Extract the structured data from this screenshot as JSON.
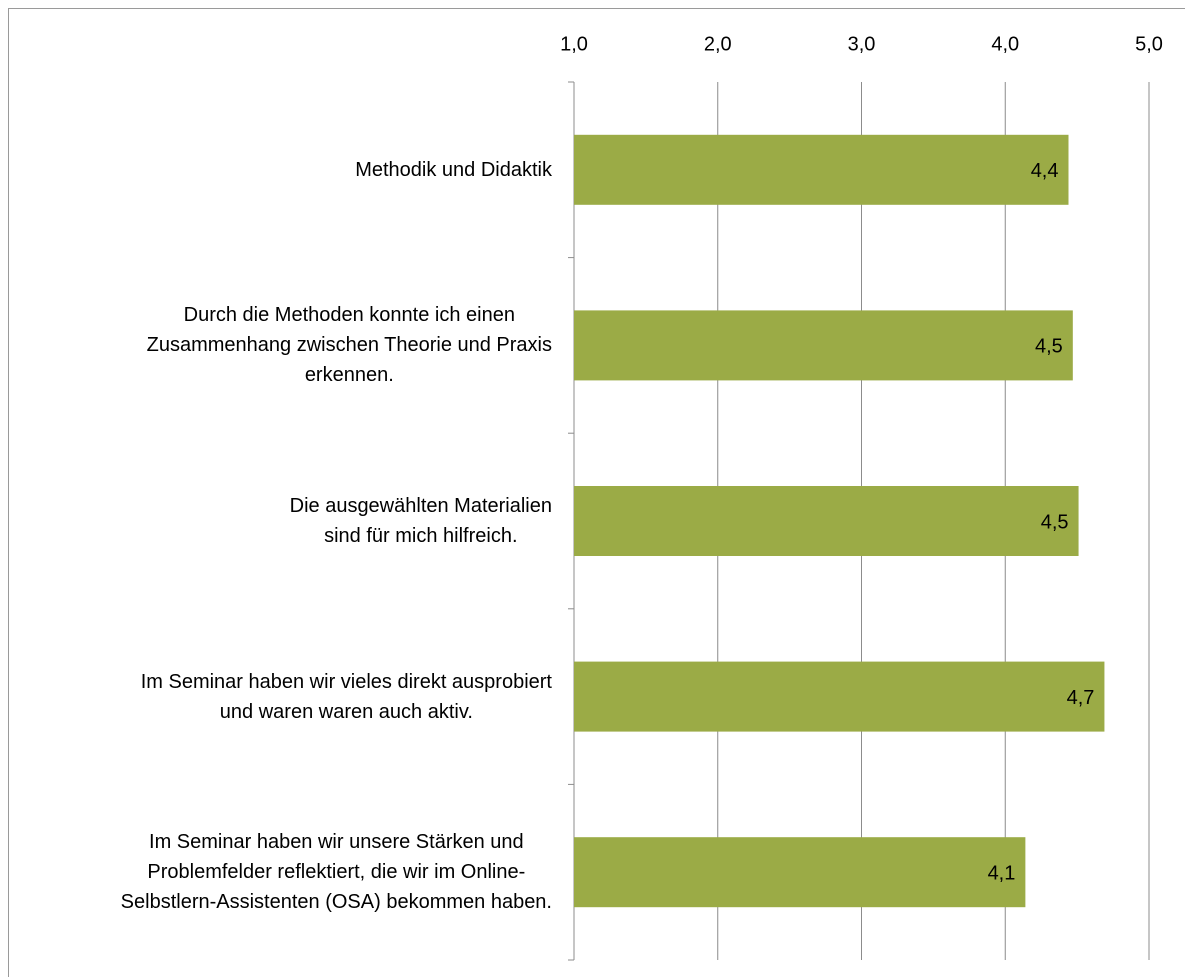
{
  "chart_data": {
    "type": "barh",
    "categories": [
      "Methodik und Didaktik",
      "Durch die Methoden konnte ich einen\nZusammenhang zwischen Theorie und Praxis\nerkennen.",
      "Die ausgewählten Materialien\nsind für mich hilfreich.",
      "Im Seminar haben wir vieles direkt ausprobiert\nund waren waren auch aktiv.",
      "Im Seminar haben wir unsere Stärken und\nProblemfelder reflektiert, die wir im Online-\nSelbstlern-Assistenten (OSA) bekommen haben."
    ],
    "values": [
      4.44,
      4.47,
      4.51,
      4.69,
      4.14
    ],
    "value_labels": [
      "4,4",
      "4,5",
      "4,5",
      "4,7",
      "4,1"
    ],
    "color": "#9bab46",
    "xlim": [
      1,
      5
    ],
    "xticks": [
      {
        "value": 1,
        "label": "1,0"
      },
      {
        "value": 2,
        "label": "2,0"
      },
      {
        "value": 3,
        "label": "3,0"
      },
      {
        "value": 4,
        "label": "4,0"
      },
      {
        "value": 5,
        "label": "5,0"
      }
    ],
    "grid": true
  }
}
